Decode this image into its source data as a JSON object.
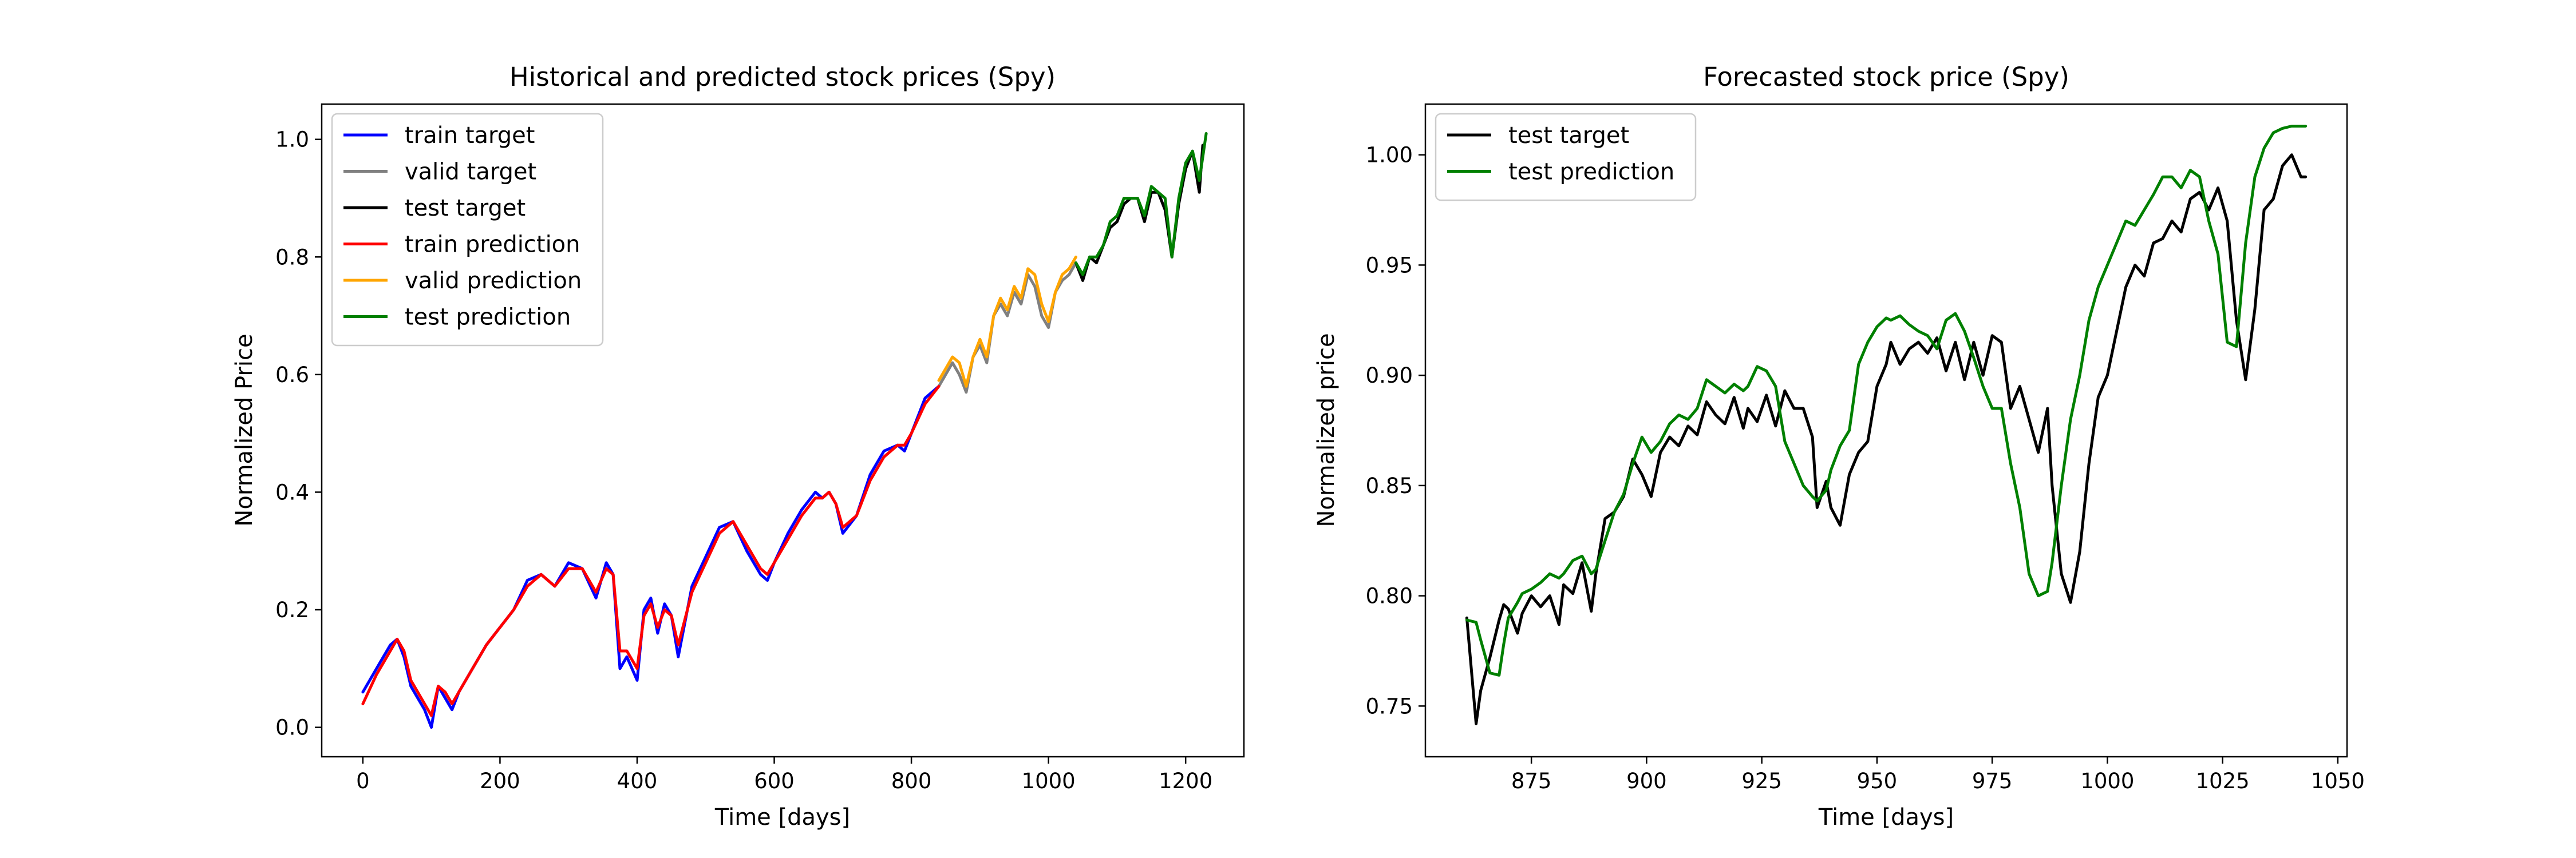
{
  "chart_data": [
    {
      "type": "line",
      "title": "Historical and predicted stock prices (Spy)",
      "xlabel": "Time [days]",
      "ylabel": "Normalized Price",
      "xlim": [
        -60,
        1285
      ],
      "ylim": [
        -0.05,
        1.06
      ],
      "xticks": [
        0,
        200,
        400,
        600,
        800,
        1000,
        1200
      ],
      "yticks": [
        0.0,
        0.2,
        0.4,
        0.6,
        0.8,
        1.0
      ],
      "ytick_format": 1,
      "legend": "top-left",
      "grid": false,
      "series": [
        {
          "name": "train target",
          "color": "#0000ff",
          "x": [
            0,
            20,
            40,
            50,
            60,
            70,
            80,
            90,
            100,
            110,
            120,
            130,
            140,
            160,
            180,
            200,
            220,
            240,
            260,
            280,
            300,
            320,
            340,
            355,
            365,
            375,
            385,
            400,
            410,
            420,
            430,
            440,
            450,
            460,
            480,
            500,
            520,
            540,
            560,
            580,
            590,
            600,
            620,
            640,
            660,
            670,
            680,
            690,
            700,
            720,
            740,
            760,
            780,
            790,
            800,
            820,
            840
          ],
          "y": [
            0.06,
            0.1,
            0.14,
            0.15,
            0.12,
            0.07,
            0.05,
            0.03,
            0.0,
            0.07,
            0.05,
            0.03,
            0.06,
            0.1,
            0.14,
            0.17,
            0.2,
            0.25,
            0.26,
            0.24,
            0.28,
            0.27,
            0.22,
            0.28,
            0.26,
            0.1,
            0.12,
            0.08,
            0.2,
            0.22,
            0.16,
            0.21,
            0.19,
            0.12,
            0.24,
            0.29,
            0.34,
            0.35,
            0.3,
            0.26,
            0.25,
            0.28,
            0.33,
            0.37,
            0.4,
            0.39,
            0.4,
            0.38,
            0.33,
            0.36,
            0.43,
            0.47,
            0.48,
            0.47,
            0.5,
            0.56,
            0.58
          ]
        },
        {
          "name": "valid target",
          "color": "#808080",
          "x": [
            840,
            850,
            860,
            870,
            880,
            890,
            900,
            910,
            920,
            930,
            940,
            950,
            960,
            970,
            980,
            990,
            1000,
            1010,
            1020,
            1030,
            1040
          ],
          "y": [
            0.58,
            0.6,
            0.62,
            0.6,
            0.57,
            0.63,
            0.65,
            0.62,
            0.7,
            0.72,
            0.7,
            0.74,
            0.72,
            0.77,
            0.75,
            0.7,
            0.68,
            0.74,
            0.76,
            0.77,
            0.79
          ]
        },
        {
          "name": "test target",
          "color": "#000000",
          "x": [
            1040,
            1050,
            1060,
            1070,
            1080,
            1090,
            1100,
            1110,
            1120,
            1130,
            1140,
            1150,
            1160,
            1170,
            1180,
            1190,
            1200,
            1210,
            1220,
            1225
          ],
          "y": [
            0.79,
            0.76,
            0.8,
            0.79,
            0.82,
            0.85,
            0.86,
            0.89,
            0.9,
            0.9,
            0.86,
            0.91,
            0.91,
            0.88,
            0.8,
            0.89,
            0.95,
            0.98,
            0.91,
            0.99
          ]
        },
        {
          "name": "train prediction",
          "color": "#ff0000",
          "x": [
            0,
            20,
            40,
            50,
            60,
            70,
            80,
            90,
            100,
            110,
            120,
            130,
            140,
            160,
            180,
            200,
            220,
            240,
            260,
            280,
            300,
            320,
            340,
            355,
            365,
            375,
            385,
            400,
            410,
            420,
            430,
            440,
            450,
            460,
            480,
            500,
            520,
            540,
            560,
            580,
            590,
            600,
            620,
            640,
            660,
            670,
            680,
            690,
            700,
            720,
            740,
            760,
            780,
            790,
            800,
            820,
            840
          ],
          "y": [
            0.04,
            0.09,
            0.13,
            0.15,
            0.13,
            0.08,
            0.06,
            0.04,
            0.02,
            0.07,
            0.06,
            0.04,
            0.06,
            0.1,
            0.14,
            0.17,
            0.2,
            0.24,
            0.26,
            0.24,
            0.27,
            0.27,
            0.23,
            0.27,
            0.26,
            0.13,
            0.13,
            0.1,
            0.19,
            0.21,
            0.17,
            0.2,
            0.19,
            0.14,
            0.23,
            0.28,
            0.33,
            0.35,
            0.31,
            0.27,
            0.26,
            0.28,
            0.32,
            0.36,
            0.39,
            0.39,
            0.4,
            0.38,
            0.34,
            0.36,
            0.42,
            0.46,
            0.48,
            0.48,
            0.5,
            0.55,
            0.58
          ]
        },
        {
          "name": "valid prediction",
          "color": "#ffa500",
          "x": [
            840,
            850,
            860,
            870,
            880,
            890,
            900,
            910,
            920,
            930,
            940,
            950,
            960,
            970,
            980,
            990,
            1000,
            1010,
            1020,
            1030,
            1040
          ],
          "y": [
            0.59,
            0.61,
            0.63,
            0.62,
            0.58,
            0.63,
            0.66,
            0.63,
            0.7,
            0.73,
            0.71,
            0.75,
            0.73,
            0.78,
            0.77,
            0.72,
            0.69,
            0.74,
            0.77,
            0.78,
            0.8
          ]
        },
        {
          "name": "test prediction",
          "color": "#008000",
          "x": [
            1040,
            1050,
            1060,
            1070,
            1080,
            1090,
            1100,
            1110,
            1120,
            1130,
            1140,
            1150,
            1160,
            1170,
            1180,
            1190,
            1200,
            1210,
            1220,
            1230
          ],
          "y": [
            0.79,
            0.77,
            0.8,
            0.8,
            0.82,
            0.86,
            0.87,
            0.9,
            0.9,
            0.9,
            0.87,
            0.92,
            0.91,
            0.9,
            0.8,
            0.9,
            0.96,
            0.98,
            0.93,
            1.01
          ]
        }
      ]
    },
    {
      "type": "line",
      "title": "Forecasted stock price (Spy)",
      "xlabel": "Time [days]",
      "ylabel": "Normalized price",
      "xlim": [
        852,
        1052
      ],
      "ylim": [
        0.727,
        1.023
      ],
      "xticks": [
        875,
        900,
        925,
        950,
        975,
        1000,
        1025,
        1050
      ],
      "yticks": [
        0.75,
        0.8,
        0.85,
        0.9,
        0.95,
        1.0
      ],
      "ytick_format": 2,
      "legend": "top-left",
      "grid": false,
      "series": [
        {
          "name": "test target",
          "color": "#000000",
          "x": [
            861,
            863,
            864,
            866,
            868,
            869,
            870,
            872,
            873,
            875,
            877,
            879,
            881,
            882,
            884,
            886,
            888,
            889,
            891,
            893,
            895,
            897,
            899,
            901,
            903,
            905,
            907,
            909,
            911,
            913,
            915,
            917,
            919,
            921,
            922,
            924,
            926,
            928,
            930,
            932,
            934,
            936,
            937,
            939,
            940,
            942,
            944,
            946,
            948,
            950,
            952,
            953,
            955,
            957,
            959,
            961,
            963,
            965,
            967,
            969,
            971,
            973,
            975,
            977,
            979,
            981,
            983,
            985,
            987,
            988,
            990,
            992,
            994,
            996,
            998,
            1000,
            1002,
            1004,
            1006,
            1008,
            1010,
            1012,
            1014,
            1016,
            1018,
            1020,
            1022,
            1024,
            1026,
            1028,
            1030,
            1032,
            1034,
            1036,
            1038,
            1040,
            1042,
            1043
          ],
          "y": [
            0.79,
            0.742,
            0.757,
            0.772,
            0.789,
            0.796,
            0.794,
            0.783,
            0.792,
            0.8,
            0.795,
            0.8,
            0.787,
            0.805,
            0.801,
            0.815,
            0.793,
            0.81,
            0.835,
            0.838,
            0.845,
            0.862,
            0.855,
            0.845,
            0.865,
            0.872,
            0.868,
            0.877,
            0.873,
            0.888,
            0.882,
            0.878,
            0.89,
            0.876,
            0.885,
            0.879,
            0.891,
            0.877,
            0.893,
            0.885,
            0.885,
            0.872,
            0.84,
            0.852,
            0.84,
            0.832,
            0.855,
            0.865,
            0.87,
            0.895,
            0.905,
            0.915,
            0.905,
            0.912,
            0.915,
            0.91,
            0.917,
            0.902,
            0.915,
            0.898,
            0.915,
            0.9,
            0.918,
            0.915,
            0.885,
            0.895,
            0.88,
            0.865,
            0.885,
            0.85,
            0.81,
            0.797,
            0.82,
            0.86,
            0.89,
            0.9,
            0.92,
            0.94,
            0.95,
            0.945,
            0.96,
            0.962,
            0.97,
            0.965,
            0.98,
            0.983,
            0.975,
            0.985,
            0.97,
            0.925,
            0.898,
            0.93,
            0.975,
            0.98,
            0.995,
            1.0,
            0.99,
            0.99
          ]
        },
        {
          "name": "test prediction",
          "color": "#008000",
          "x": [
            861,
            863,
            864,
            866,
            868,
            869,
            870,
            872,
            873,
            875,
            877,
            879,
            881,
            882,
            884,
            886,
            888,
            889,
            891,
            893,
            895,
            897,
            899,
            901,
            903,
            905,
            907,
            909,
            911,
            913,
            915,
            917,
            919,
            921,
            922,
            924,
            926,
            928,
            930,
            932,
            934,
            936,
            937,
            939,
            940,
            942,
            944,
            946,
            948,
            950,
            952,
            953,
            955,
            957,
            959,
            961,
            963,
            965,
            967,
            969,
            971,
            973,
            975,
            977,
            979,
            981,
            983,
            985,
            987,
            988,
            990,
            992,
            994,
            996,
            998,
            1000,
            1002,
            1004,
            1006,
            1008,
            1010,
            1012,
            1014,
            1016,
            1018,
            1020,
            1022,
            1024,
            1026,
            1028,
            1030,
            1032,
            1034,
            1036,
            1038,
            1040,
            1042,
            1043
          ],
          "y": [
            0.789,
            0.788,
            0.78,
            0.765,
            0.764,
            0.778,
            0.79,
            0.797,
            0.801,
            0.803,
            0.806,
            0.81,
            0.808,
            0.81,
            0.816,
            0.818,
            0.81,
            0.812,
            0.825,
            0.838,
            0.846,
            0.86,
            0.872,
            0.865,
            0.87,
            0.878,
            0.882,
            0.88,
            0.885,
            0.898,
            0.895,
            0.892,
            0.896,
            0.893,
            0.895,
            0.904,
            0.902,
            0.895,
            0.87,
            0.86,
            0.85,
            0.845,
            0.843,
            0.848,
            0.857,
            0.868,
            0.875,
            0.905,
            0.915,
            0.922,
            0.926,
            0.925,
            0.927,
            0.923,
            0.92,
            0.918,
            0.912,
            0.925,
            0.928,
            0.92,
            0.908,
            0.895,
            0.885,
            0.885,
            0.86,
            0.84,
            0.81,
            0.8,
            0.802,
            0.815,
            0.85,
            0.88,
            0.9,
            0.925,
            0.94,
            0.95,
            0.96,
            0.97,
            0.968,
            0.975,
            0.982,
            0.99,
            0.99,
            0.985,
            0.993,
            0.99,
            0.97,
            0.955,
            0.915,
            0.913,
            0.96,
            0.99,
            1.003,
            1.01,
            1.012,
            1.013,
            1.013,
            1.013
          ]
        }
      ]
    }
  ]
}
